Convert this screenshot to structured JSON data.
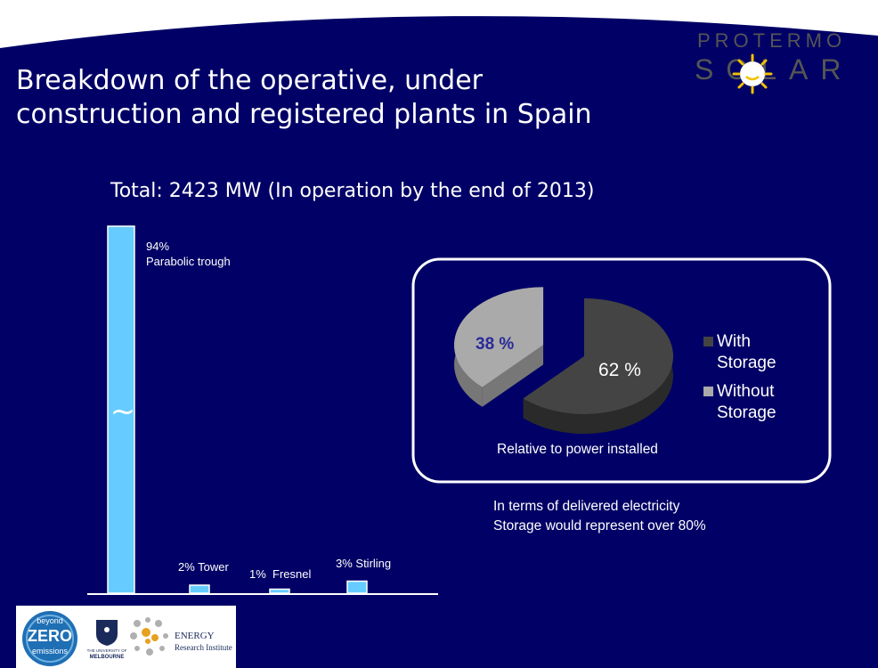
{
  "slide": {
    "title": "Breakdown of the operative, under construction and registered plants in Spain",
    "subtitle": "Total: 2423 MW (In operation by the end of 2013)",
    "brand": {
      "line1": "PROTERMO",
      "line2": "SOLAR"
    },
    "note_lines": [
      "In terms of delivered electricity",
      "Storage would represent over 80%"
    ],
    "footer": {
      "bze_line1": "beyond",
      "bze_line2": "ZERO",
      "bze_line3": "emissions",
      "uni_line1": "THE UNIVERSITY OF",
      "uni_line2": "MELBOURNE",
      "eri_line1": "ENERGY",
      "eri_line2": "Research Institute"
    },
    "colors": {
      "background": "#000066",
      "bar": "#66ccff",
      "with_storage": "#444444",
      "without_storage": "#aaaaaa",
      "pie_label_without": "#2a2a9a"
    }
  },
  "chart_data": [
    {
      "type": "bar",
      "title": "Total: 2423 MW (In operation by the end of 2013)",
      "categories": [
        "Parabolic trough",
        "Tower",
        "Fresnel",
        "Stirling"
      ],
      "values": [
        94,
        2,
        1,
        3
      ],
      "unit": "%",
      "data_labels": [
        "94%\nParabolic trough",
        "2% Tower",
        "1%  Fresnel",
        "3% Stirling"
      ],
      "axis_break": "~",
      "xlabel": "",
      "ylabel": "",
      "grid": false
    },
    {
      "type": "pie",
      "labels": [
        "With Storage",
        "Without Storage"
      ],
      "values": [
        62,
        38
      ],
      "data_labels": [
        "62 %",
        "38 %"
      ],
      "legend": [
        "With Storage",
        "Without Storage"
      ],
      "legend_placement": "right",
      "caption": "Relative to power installed"
    }
  ]
}
